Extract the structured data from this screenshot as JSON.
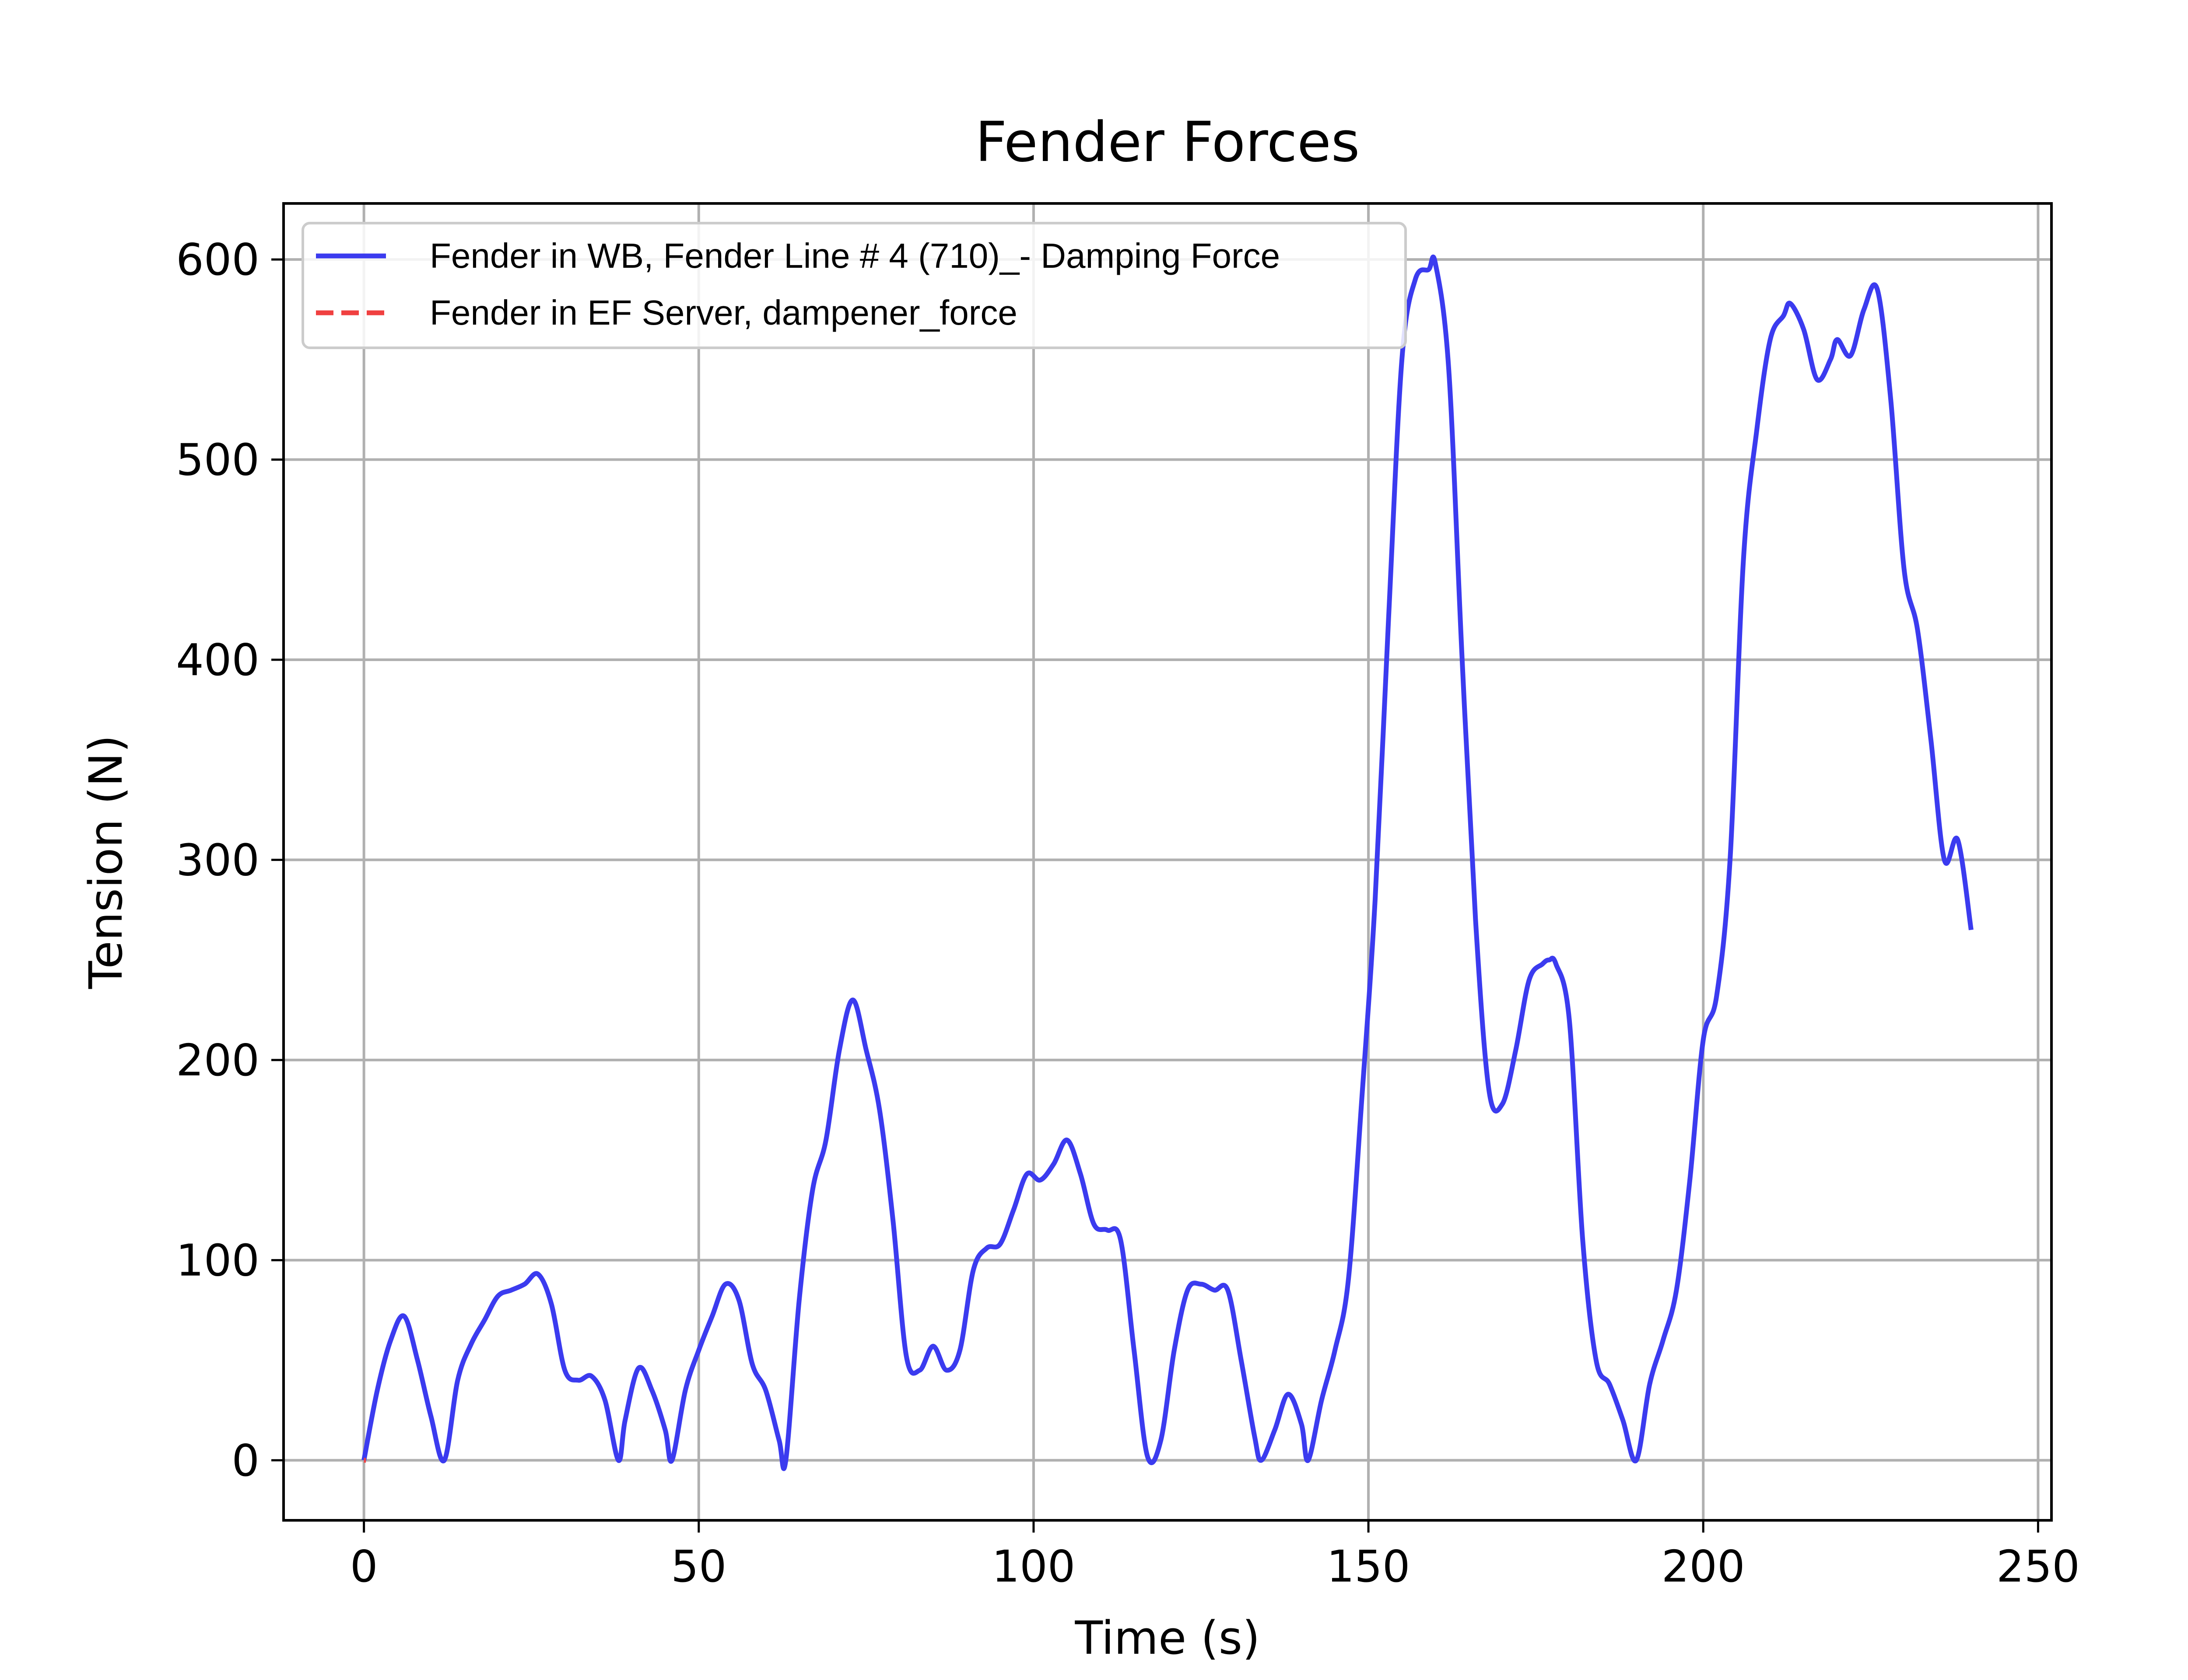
{
  "chart_data": {
    "type": "line",
    "title": "Fender Forces",
    "xlabel": "Time (s)",
    "ylabel": "Tension (N)",
    "xlim": [
      -12,
      252
    ],
    "ylim": [
      -30,
      628
    ],
    "xticks": [
      0,
      50,
      100,
      150,
      200,
      250
    ],
    "yticks": [
      0,
      100,
      200,
      300,
      400,
      500,
      600
    ],
    "grid": true,
    "legend_position": "upper-left",
    "series": [
      {
        "name": "Fender in WB, Fender Line # 4 (710)_- Damping Force",
        "color": "#3b3bef",
        "style": "solid",
        "x": [
          0,
          2,
          4,
          6,
          8,
          10,
          12,
          14,
          16,
          18,
          20,
          22,
          24,
          26,
          28,
          30,
          32,
          34,
          36,
          38,
          39,
          41,
          43,
          45,
          46,
          48,
          50,
          52,
          54,
          56,
          58,
          60,
          62,
          63,
          65,
          67,
          69,
          71,
          73,
          75,
          77,
          79,
          81,
          83,
          85,
          87,
          89,
          91,
          93,
          95,
          97,
          99,
          101,
          103,
          105,
          107,
          109,
          111,
          113,
          115,
          117,
          119,
          121,
          123,
          125,
          127,
          129,
          131,
          133,
          134,
          136,
          138,
          140,
          141,
          143,
          145,
          147,
          149,
          151,
          153,
          155,
          157,
          159,
          160,
          162,
          164,
          166,
          168,
          170,
          172,
          174,
          176,
          177,
          178,
          180,
          182,
          184,
          186,
          188,
          190,
          192,
          194,
          196,
          198,
          200,
          202,
          204,
          206,
          208,
          210,
          212,
          213,
          215,
          217,
          219,
          220,
          222,
          224,
          226,
          228,
          230,
          232,
          234,
          236,
          238,
          240
        ],
        "y": [
          0,
          35,
          60,
          72,
          50,
          22,
          0,
          40,
          58,
          70,
          82,
          85,
          88,
          93,
          78,
          45,
          40,
          42,
          30,
          0,
          20,
          46,
          35,
          15,
          0,
          35,
          55,
          72,
          88,
          80,
          48,
          35,
          10,
          0,
          80,
          135,
          160,
          205,
          230,
          205,
          175,
          120,
          52,
          45,
          57,
          45,
          55,
          95,
          106,
          108,
          125,
          143,
          140,
          148,
          160,
          143,
          118,
          115,
          110,
          55,
          2,
          10,
          55,
          85,
          88,
          85,
          85,
          50,
          12,
          0,
          15,
          33,
          18,
          0,
          30,
          55,
          90,
          180,
          280,
          420,
          550,
          590,
          595,
          598,
          545,
          400,
          270,
          185,
          178,
          205,
          240,
          248,
          250,
          248,
          220,
          110,
          50,
          38,
          20,
          0,
          38,
          60,
          85,
          140,
          210,
          232,
          300,
          450,
          515,
          560,
          572,
          578,
          565,
          540,
          550,
          560,
          552,
          575,
          585,
          530,
          445,
          415,
          360,
          300,
          310,
          265
        ]
      },
      {
        "name": "Fender in EF Server, dampener_force",
        "color": "#f04040",
        "style": "dashed",
        "x": [
          0,
          0.3
        ],
        "y": [
          0,
          0
        ]
      }
    ]
  }
}
